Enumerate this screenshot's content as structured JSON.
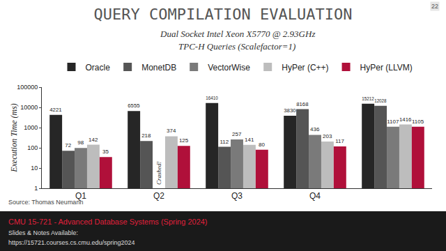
{
  "chart_data": {
    "type": "bar",
    "title": "QUERY COMPILATION EVALUATION",
    "subtitle": [
      "Dual Socket Intel Xeon X5770 @ 2.93GHz",
      "TPC-H Queries (Scalefactor=1)"
    ],
    "y_label": "Execution Time (ms)",
    "categories": [
      "Q1",
      "Q2",
      "Q3",
      "Q4",
      null
    ],
    "series": [
      {
        "name": "Oracle",
        "color": "#262626",
        "values": [
          4221,
          6555,
          16410,
          3830,
          15212
        ]
      },
      {
        "name": "MonetDB",
        "color": "#555555",
        "values": [
          72,
          218,
          112,
          8168,
          12028
        ]
      },
      {
        "name": "VectorWise",
        "color": "#7a7a7a",
        "values": [
          98,
          null,
          257,
          436,
          1107
        ]
      },
      {
        "name": "HyPer (C++)",
        "color": "#bdbdbd",
        "values": [
          142,
          374,
          141,
          203,
          1416
        ]
      },
      {
        "name": "HyPer (LLVM)",
        "color": "#b0103a",
        "values": [
          35,
          125,
          80,
          117,
          1105
        ]
      }
    ],
    "log": "y",
    "ylim": [
      1,
      100000
    ],
    "yticks": [
      1,
      10,
      100,
      1000,
      10000,
      100000
    ],
    "grid": false,
    "legend": "top",
    "data_labels": true,
    "annotations": [
      {
        "text": "Crashed!",
        "category": "Q2",
        "series": "VectorWise"
      }
    ],
    "source": "Source: Thomas Neumann",
    "slide_number": 22,
    "footer": [
      "CMU 15-721 - Advanced Database Systems (Spring 2024)",
      "Slides & Notes Available:",
      "https://15721.courses.cs.cmu.edu/spring2024"
    ]
  }
}
